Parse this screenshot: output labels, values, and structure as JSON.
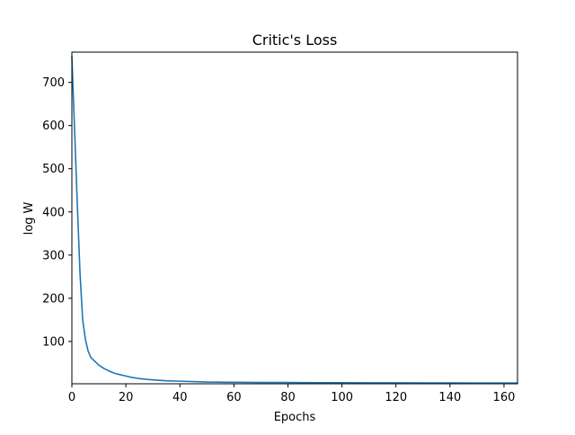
{
  "chart_data": {
    "type": "line",
    "title": "Critic's Loss",
    "xlabel": "Epochs",
    "ylabel": "log W",
    "xlim": [
      0,
      165
    ],
    "ylim": [
      2,
      770
    ],
    "x_ticks": [
      0,
      20,
      40,
      60,
      80,
      100,
      120,
      140,
      160
    ],
    "y_ticks": [
      100,
      200,
      300,
      400,
      500,
      600,
      700
    ],
    "x_tick_labels": [
      "0",
      "20",
      "40",
      "60",
      "80",
      "100",
      "120",
      "140",
      "160"
    ],
    "y_tick_labels": [
      "100",
      "200",
      "300",
      "400",
      "500",
      "600",
      "700"
    ],
    "grid": false,
    "legend": "none",
    "colors": {
      "line": "#1f77b4",
      "axes": "#000000",
      "background": "#ffffff"
    },
    "series": [
      {
        "x": [
          0,
          1,
          2,
          3,
          4,
          5,
          6,
          7,
          8,
          10,
          12,
          14,
          16,
          18,
          20,
          22,
          25,
          28,
          30,
          35,
          40,
          45,
          50,
          60,
          70,
          80,
          90,
          100,
          110,
          120,
          130,
          140,
          150,
          160,
          165
        ],
        "values": [
          760,
          590,
          420,
          260,
          150,
          105,
          78,
          63,
          57,
          45,
          37,
          31,
          26,
          23,
          20,
          17,
          14,
          12,
          11,
          9,
          8,
          7,
          6,
          5.5,
          5,
          5,
          4.5,
          4.5,
          4.2,
          4.2,
          4,
          4,
          3.8,
          3.8,
          3.7
        ]
      }
    ]
  }
}
